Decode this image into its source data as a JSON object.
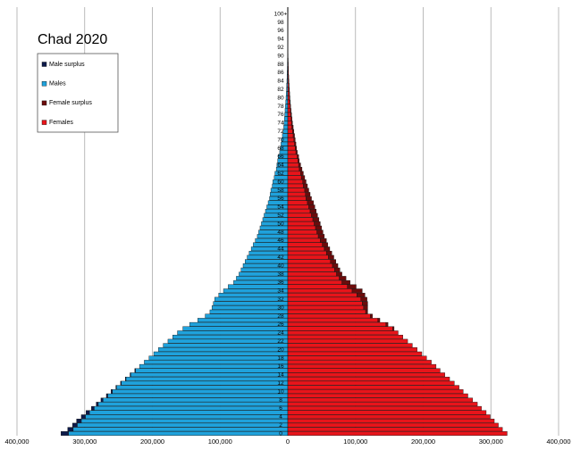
{
  "chart_data": {
    "type": "pyramid",
    "title": "Chad 2020",
    "categories": [
      "0",
      null,
      "2",
      null,
      "4",
      null,
      "6",
      null,
      "8",
      null,
      "10",
      null,
      "12",
      null,
      "14",
      null,
      "16",
      null,
      "18",
      null,
      "20",
      null,
      "22",
      null,
      "24",
      null,
      "26",
      null,
      "28",
      null,
      "30",
      null,
      "32",
      null,
      "34",
      null,
      "36",
      null,
      "38",
      null,
      "40",
      null,
      "42",
      null,
      "44",
      null,
      "46",
      null,
      "48",
      null,
      "50",
      null,
      "52",
      null,
      "54",
      null,
      "56",
      null,
      "58",
      null,
      "60",
      null,
      "62",
      null,
      "64",
      null,
      "66",
      null,
      "68",
      null,
      "70",
      null,
      "72",
      null,
      "74",
      null,
      "76",
      null,
      "78",
      null,
      "80",
      null,
      "82",
      null,
      "84",
      null,
      "86",
      null,
      "88",
      null,
      "90",
      null,
      "92",
      null,
      "94",
      null,
      "96",
      null,
      "98",
      null,
      "100+"
    ],
    "series": [
      {
        "name": "Male surplus",
        "color": "#0d1a4a",
        "side": "left",
        "values": [
          11000,
          8000,
          7000,
          7000,
          6000,
          5000,
          4000,
          3000,
          3000,
          2000,
          2000,
          1000,
          1000,
          1000,
          1000,
          1000,
          0,
          0,
          0,
          0,
          0,
          0,
          0,
          0,
          0,
          0,
          0,
          0,
          0,
          0,
          0,
          0,
          0,
          0,
          0,
          0,
          0,
          0,
          0,
          0,
          0,
          0,
          0,
          0,
          0,
          0,
          0,
          0,
          0,
          0,
          0,
          0,
          0,
          0,
          0,
          0,
          0,
          0,
          0,
          0,
          0,
          0,
          0,
          0,
          0,
          0,
          0,
          0,
          0,
          0,
          0,
          0,
          0,
          0,
          0,
          0,
          0,
          0,
          0,
          0,
          0,
          0,
          0,
          0,
          0,
          0,
          0,
          0,
          0,
          0,
          0,
          0,
          0,
          0,
          0,
          0,
          0,
          0,
          0,
          0,
          0
        ]
      },
      {
        "name": "Males",
        "color": "#1fa2dc",
        "side": "left",
        "values": [
          324000,
          317000,
          311000,
          305000,
          299000,
          293000,
          286000,
          280000,
          273000,
          266000,
          259000,
          253000,
          246000,
          239000,
          232000,
          225000,
          219000,
          212000,
          205000,
          198000,
          191000,
          184000,
          177000,
          170000,
          163000,
          155000,
          145000,
          133000,
          122000,
          115000,
          112000,
          110000,
          108000,
          102000,
          95000,
          88000,
          80000,
          76000,
          72000,
          69000,
          66000,
          63000,
          60000,
          57000,
          54000,
          51000,
          48000,
          45000,
          43000,
          41000,
          39000,
          37000,
          35000,
          33000,
          31000,
          29000,
          27000,
          26000,
          25000,
          23000,
          22000,
          20000,
          19000,
          17000,
          16000,
          15000,
          14000,
          12000,
          11000,
          10000,
          9000,
          8000,
          7000,
          6000,
          5500,
          5000,
          4500,
          4000,
          3500,
          3000,
          2600,
          2200,
          1900,
          1600,
          1300,
          1100,
          900,
          700,
          600,
          500,
          400,
          300,
          250,
          200,
          150,
          100,
          80,
          60,
          40,
          30,
          20
        ]
      },
      {
        "name": "Female surplus",
        "color": "#6b0b0b",
        "side": "right",
        "values": [
          0,
          0,
          0,
          0,
          0,
          0,
          0,
          0,
          0,
          0,
          0,
          0,
          0,
          0,
          0,
          0,
          0,
          0,
          0,
          0,
          0,
          0,
          0,
          0,
          0,
          2000,
          3000,
          3000,
          3000,
          3000,
          6000,
          8000,
          9000,
          12000,
          15000,
          13000,
          12000,
          10000,
          8000,
          8000,
          8000,
          8000,
          8000,
          8000,
          8000,
          8000,
          9000,
          9000,
          9000,
          9000,
          9000,
          9000,
          9000,
          9000,
          9000,
          9000,
          8000,
          7000,
          6000,
          6000,
          5000,
          5000,
          4000,
          4000,
          3000,
          2000,
          2000,
          2000,
          2000,
          2000,
          2000,
          2000,
          2000,
          2000,
          1500,
          1200,
          1000,
          800,
          700,
          700,
          600,
          600,
          500,
          400,
          400,
          300,
          200,
          200,
          100,
          50,
          50,
          50,
          30,
          20,
          20,
          20,
          10,
          10,
          10,
          10,
          10
        ]
      },
      {
        "name": "Females",
        "color": "#e8141a",
        "side": "right",
        "values": [
          324000,
          317000,
          311000,
          305000,
          299000,
          293000,
          286000,
          280000,
          273000,
          266000,
          259000,
          253000,
          246000,
          239000,
          232000,
          225000,
          219000,
          212000,
          205000,
          198000,
          191000,
          184000,
          177000,
          170000,
          163000,
          155000,
          145000,
          133000,
          122000,
          115000,
          112000,
          110000,
          108000,
          102000,
          95000,
          88000,
          80000,
          76000,
          72000,
          69000,
          66000,
          63000,
          60000,
          57000,
          54000,
          51000,
          48000,
          45000,
          43000,
          41000,
          39000,
          37000,
          35000,
          33000,
          31000,
          29000,
          27000,
          26000,
          25000,
          23000,
          22000,
          20000,
          19000,
          17000,
          16000,
          15000,
          14000,
          12000,
          11000,
          10000,
          9000,
          8000,
          7000,
          6000,
          5500,
          5000,
          4500,
          4000,
          3500,
          3000,
          2600,
          2200,
          1900,
          1600,
          1300,
          1100,
          900,
          700,
          600,
          500,
          400,
          300,
          250,
          200,
          150,
          100,
          80,
          60,
          40,
          30,
          20
        ]
      }
    ],
    "xlim": [
      -400000,
      400000
    ],
    "xticks": [
      {
        "value": -400000,
        "label": "400,000"
      },
      {
        "value": -300000,
        "label": "300,000"
      },
      {
        "value": -200000,
        "label": "200,000"
      },
      {
        "value": -100000,
        "label": "100,000"
      },
      0,
      {
        "value": 100000,
        "label": "100,000"
      },
      {
        "value": 200000,
        "label": "200,000"
      },
      {
        "value": 300000,
        "label": "300,000"
      },
      {
        "value": 400000,
        "label": "400,000"
      }
    ],
    "grid": true
  }
}
